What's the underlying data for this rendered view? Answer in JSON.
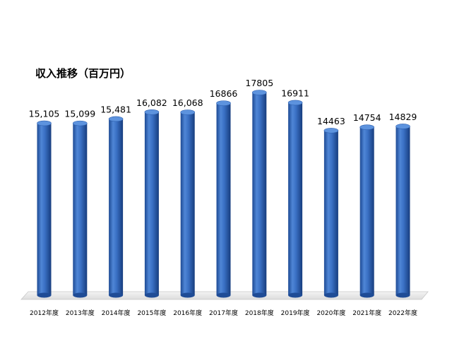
{
  "chart_data": {
    "type": "bar",
    "title": "収入推移（百万円）",
    "xlabel": "",
    "ylabel": "",
    "categories": [
      "2012年度",
      "2013年度",
      "2014年度",
      "2015年度",
      "2016年度",
      "2017年度",
      "2018年度",
      "2019年度",
      "2020年度",
      "2021年度",
      "2022年度"
    ],
    "values": [
      15105,
      15099,
      15481,
      16082,
      16068,
      16866,
      17805,
      16911,
      14463,
      14754,
      14829
    ],
    "value_labels": [
      "15,105",
      "15,099",
      "15,481",
      "16,082",
      "16,068",
      "16866",
      "17805",
      "16911",
      "14463",
      "14754",
      "14829"
    ],
    "ylim": [
      0,
      17805
    ],
    "grid": false,
    "legend": "none",
    "colors": {
      "bar_light": "#5b8fd8",
      "bar_mid": "#2f63b8",
      "bar_dark": "#1a3f80",
      "floor": "#eeeeee"
    }
  }
}
